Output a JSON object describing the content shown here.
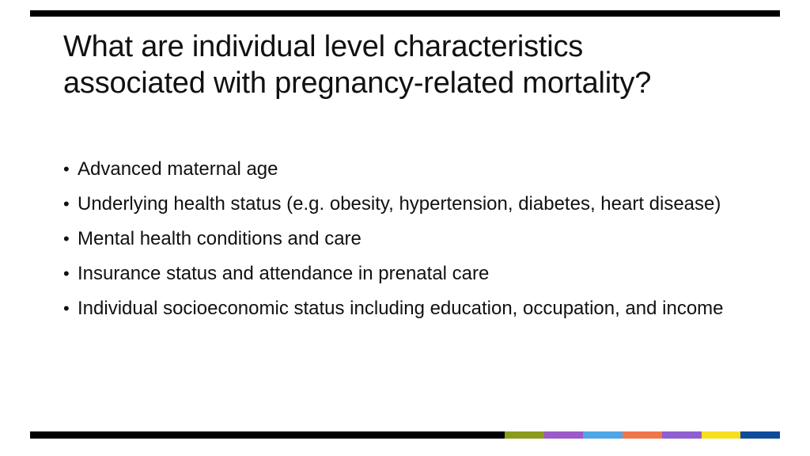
{
  "slide": {
    "title_line1": "What are individual level characteristics",
    "title_line2": "associated with pregnancy-related mortality?",
    "bullets": [
      "Advanced maternal age",
      "Underlying health status (e.g. obesity, hypertension, diabetes, heart disease)",
      "Mental health conditions and care",
      "Insurance status and attendance in prenatal care",
      "Individual socioeconomic status including education, occupation, and income"
    ],
    "bullet_glyph": "•"
  },
  "colors": {
    "rule": "#000000",
    "accent_segments": [
      "#8a9a1b",
      "#9b59c9",
      "#4ea6e6",
      "#f0764a",
      "#8e5fd0",
      "#f7df1e",
      "#0f4c9a"
    ]
  }
}
